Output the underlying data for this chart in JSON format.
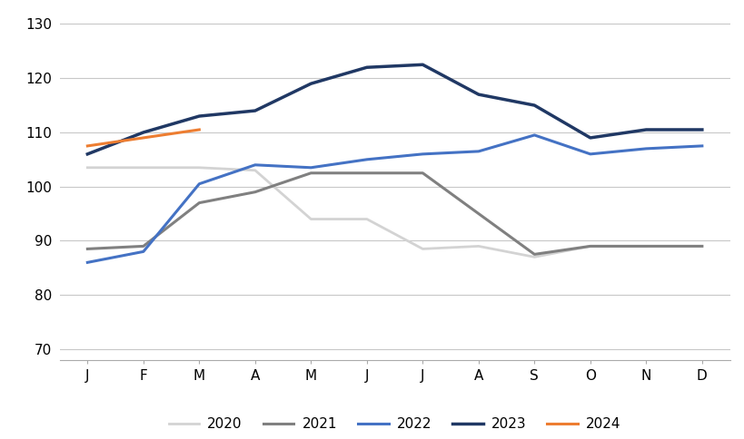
{
  "months": [
    "J",
    "F",
    "M",
    "A",
    "M",
    "J",
    "J",
    "A",
    "S",
    "O",
    "N",
    "D"
  ],
  "series": {
    "2020": [
      103.5,
      103.5,
      103.5,
      103.0,
      94.0,
      94.0,
      88.5,
      89.0,
      87.0,
      89.0,
      89.0,
      null
    ],
    "2021": [
      88.5,
      89.0,
      97.0,
      99.0,
      102.5,
      102.5,
      102.5,
      95.0,
      87.5,
      89.0,
      89.0,
      89.0
    ],
    "2022": [
      86.0,
      88.0,
      100.5,
      104.0,
      103.5,
      105.0,
      106.0,
      106.5,
      109.5,
      106.0,
      107.0,
      107.5
    ],
    "2023": [
      106.0,
      110.0,
      113.0,
      114.0,
      119.0,
      122.0,
      122.5,
      117.0,
      115.0,
      109.0,
      110.5,
      110.5
    ],
    "2024": [
      107.5,
      109.0,
      110.5,
      null,
      null,
      null,
      null,
      null,
      null,
      null,
      null,
      null
    ]
  },
  "colors": {
    "2020": "#d3d3d3",
    "2021": "#808080",
    "2022": "#4472c4",
    "2023": "#203864",
    "2024": "#ed7d31"
  },
  "linewidths": {
    "2020": 2.0,
    "2021": 2.2,
    "2022": 2.2,
    "2023": 2.5,
    "2024": 2.2
  },
  "ylim": [
    68,
    132
  ],
  "yticks": [
    70,
    80,
    90,
    100,
    110,
    120,
    130
  ],
  "background_color": "#ffffff",
  "grid_color": "#c8c8c8",
  "legend_order": [
    "2020",
    "2021",
    "2022",
    "2023",
    "2024"
  ]
}
